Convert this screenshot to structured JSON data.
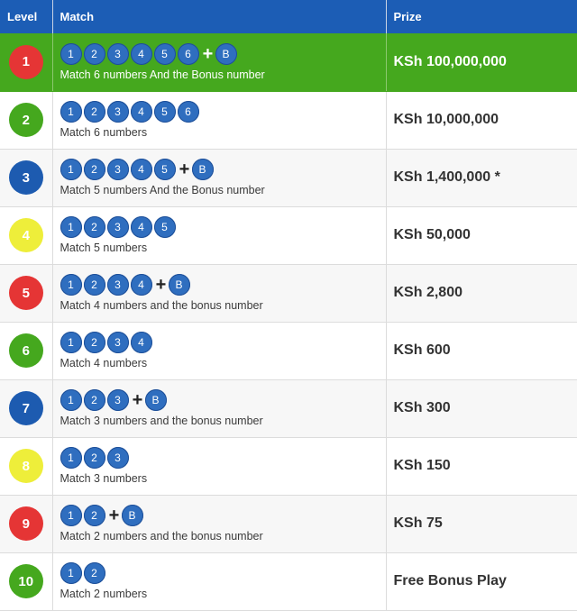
{
  "header": {
    "level": "Level",
    "match": "Match",
    "prize": "Prize"
  },
  "rows": [
    {
      "level": "1",
      "color": "#e53535",
      "balls": [
        "1",
        "2",
        "3",
        "4",
        "5",
        "6"
      ],
      "bonus": "B",
      "desc": "Match 6 numbers And the Bonus number",
      "prize": "KSh 100,000,000"
    },
    {
      "level": "2",
      "color": "#45a81e",
      "balls": [
        "1",
        "2",
        "3",
        "4",
        "5",
        "6"
      ],
      "bonus": null,
      "desc": "Match 6 numbers",
      "prize": "KSh 10,000,000"
    },
    {
      "level": "3",
      "color": "#1d5bb0",
      "balls": [
        "1",
        "2",
        "3",
        "4",
        "5"
      ],
      "bonus": "B",
      "desc": "Match 5 numbers And the Bonus number",
      "prize": "KSh 1,400,000 *"
    },
    {
      "level": "4",
      "color": "#eeee3a",
      "balls": [
        "1",
        "2",
        "3",
        "4",
        "5"
      ],
      "bonus": null,
      "desc": "Match 5 numbers",
      "prize": "KSh 50,000"
    },
    {
      "level": "5",
      "color": "#e53535",
      "balls": [
        "1",
        "2",
        "3",
        "4"
      ],
      "bonus": "B",
      "desc": "Match 4 numbers and the bonus number",
      "prize": "KSh 2,800"
    },
    {
      "level": "6",
      "color": "#45a81e",
      "balls": [
        "1",
        "2",
        "3",
        "4"
      ],
      "bonus": null,
      "desc": "Match 4 numbers",
      "prize": "KSh 600"
    },
    {
      "level": "7",
      "color": "#1d5bb0",
      "balls": [
        "1",
        "2",
        "3"
      ],
      "bonus": "B",
      "desc": "Match 3 numbers and the bonus number",
      "prize": "KSh 300"
    },
    {
      "level": "8",
      "color": "#eeee3a",
      "balls": [
        "1",
        "2",
        "3"
      ],
      "bonus": null,
      "desc": "Match 3 numbers",
      "prize": "KSh 150"
    },
    {
      "level": "9",
      "color": "#e53535",
      "balls": [
        "1",
        "2"
      ],
      "bonus": "B",
      "desc": "Match 2 numbers and the bonus number",
      "prize": "KSh 75"
    },
    {
      "level": "10",
      "color": "#45a81e",
      "balls": [
        "1",
        "2"
      ],
      "bonus": null,
      "desc": "Match 2 numbers",
      "prize": "Free Bonus Play"
    }
  ]
}
